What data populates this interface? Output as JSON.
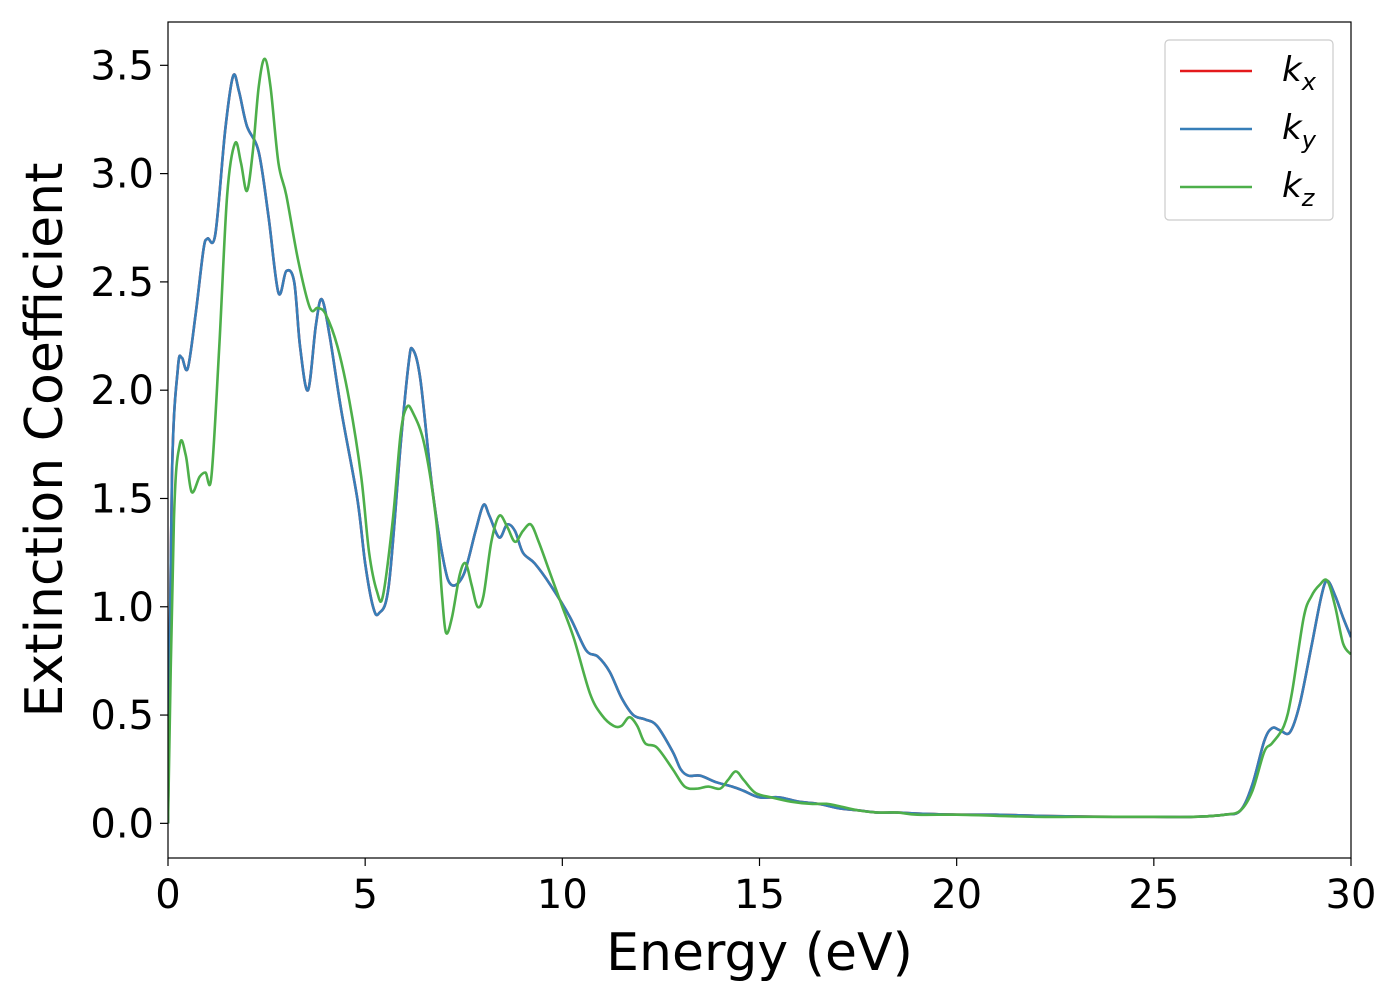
{
  "chart_data": {
    "type": "line",
    "title": "",
    "xlabel": "Energy (eV)",
    "ylabel": "Extinction Coefficient",
    "xlim": [
      0,
      30
    ],
    "ylim": [
      -0.16,
      3.7
    ],
    "xticks": [
      0,
      5,
      10,
      15,
      20,
      25,
      30
    ],
    "yticks": [
      "0.0",
      "0.5",
      "1.0",
      "1.5",
      "2.0",
      "2.5",
      "3.0",
      "3.5"
    ],
    "grid": false,
    "legend_position": "top-right",
    "legend": [
      {
        "base": "k",
        "sub": "x",
        "color": "#e41a1c"
      },
      {
        "base": "k",
        "sub": "y",
        "color": "#377eb8"
      },
      {
        "base": "k",
        "sub": "z",
        "color": "#4daf4a"
      }
    ],
    "series": [
      {
        "name": "k_x",
        "color": "#e41a1c",
        "points": [
          [
            0,
            0
          ],
          [
            0.1,
            1.6
          ],
          [
            0.25,
            2.1
          ],
          [
            0.35,
            2.15
          ],
          [
            0.5,
            2.1
          ],
          [
            0.7,
            2.35
          ],
          [
            0.9,
            2.65
          ],
          [
            1.0,
            2.7
          ],
          [
            1.2,
            2.72
          ],
          [
            1.45,
            3.2
          ],
          [
            1.65,
            3.45
          ],
          [
            1.8,
            3.38
          ],
          [
            2.0,
            3.22
          ],
          [
            2.3,
            3.1
          ],
          [
            2.55,
            2.8
          ],
          [
            2.8,
            2.45
          ],
          [
            3.0,
            2.55
          ],
          [
            3.2,
            2.5
          ],
          [
            3.35,
            2.2
          ],
          [
            3.55,
            2.0
          ],
          [
            3.75,
            2.3
          ],
          [
            3.9,
            2.42
          ],
          [
            4.1,
            2.25
          ],
          [
            4.4,
            1.9
          ],
          [
            4.8,
            1.5
          ],
          [
            5.0,
            1.2
          ],
          [
            5.2,
            1.0
          ],
          [
            5.35,
            0.97
          ],
          [
            5.6,
            1.1
          ],
          [
            5.9,
            1.75
          ],
          [
            6.1,
            2.12
          ],
          [
            6.2,
            2.19
          ],
          [
            6.4,
            2.05
          ],
          [
            6.7,
            1.55
          ],
          [
            7.0,
            1.2
          ],
          [
            7.2,
            1.1
          ],
          [
            7.5,
            1.15
          ],
          [
            7.8,
            1.35
          ],
          [
            8.0,
            1.47
          ],
          [
            8.15,
            1.42
          ],
          [
            8.4,
            1.32
          ],
          [
            8.6,
            1.38
          ],
          [
            8.8,
            1.35
          ],
          [
            9.0,
            1.25
          ],
          [
            9.3,
            1.2
          ],
          [
            9.7,
            1.1
          ],
          [
            10.2,
            0.95
          ],
          [
            10.6,
            0.8
          ],
          [
            10.9,
            0.77
          ],
          [
            11.2,
            0.7
          ],
          [
            11.5,
            0.58
          ],
          [
            11.8,
            0.5
          ],
          [
            12.1,
            0.48
          ],
          [
            12.4,
            0.45
          ],
          [
            12.8,
            0.33
          ],
          [
            13.0,
            0.25
          ],
          [
            13.2,
            0.22
          ],
          [
            13.5,
            0.22
          ],
          [
            13.9,
            0.19
          ],
          [
            14.3,
            0.17
          ],
          [
            14.6,
            0.15
          ],
          [
            15.0,
            0.12
          ],
          [
            15.5,
            0.12
          ],
          [
            16.0,
            0.1
          ],
          [
            16.5,
            0.09
          ],
          [
            17.0,
            0.07
          ],
          [
            17.5,
            0.06
          ],
          [
            18.0,
            0.05
          ],
          [
            18.5,
            0.05
          ],
          [
            19.0,
            0.045
          ],
          [
            20.0,
            0.04
          ],
          [
            21.0,
            0.04
          ],
          [
            22.0,
            0.035
          ],
          [
            23.0,
            0.032
          ],
          [
            24.0,
            0.03
          ],
          [
            25.0,
            0.03
          ],
          [
            26.0,
            0.03
          ],
          [
            26.8,
            0.04
          ],
          [
            27.2,
            0.06
          ],
          [
            27.5,
            0.18
          ],
          [
            27.8,
            0.38
          ],
          [
            28.0,
            0.44
          ],
          [
            28.2,
            0.43
          ],
          [
            28.45,
            0.42
          ],
          [
            28.7,
            0.55
          ],
          [
            29.0,
            0.82
          ],
          [
            29.25,
            1.05
          ],
          [
            29.4,
            1.12
          ],
          [
            29.6,
            1.05
          ],
          [
            29.8,
            0.95
          ],
          [
            30.0,
            0.86
          ]
        ]
      },
      {
        "name": "k_y",
        "color": "#377eb8",
        "points": [
          [
            0,
            0
          ],
          [
            0.1,
            1.6
          ],
          [
            0.25,
            2.1
          ],
          [
            0.35,
            2.15
          ],
          [
            0.5,
            2.1
          ],
          [
            0.7,
            2.35
          ],
          [
            0.9,
            2.65
          ],
          [
            1.0,
            2.7
          ],
          [
            1.2,
            2.72
          ],
          [
            1.45,
            3.2
          ],
          [
            1.65,
            3.45
          ],
          [
            1.8,
            3.38
          ],
          [
            2.0,
            3.22
          ],
          [
            2.3,
            3.1
          ],
          [
            2.55,
            2.8
          ],
          [
            2.8,
            2.45
          ],
          [
            3.0,
            2.55
          ],
          [
            3.2,
            2.5
          ],
          [
            3.35,
            2.2
          ],
          [
            3.55,
            2.0
          ],
          [
            3.75,
            2.3
          ],
          [
            3.9,
            2.42
          ],
          [
            4.1,
            2.25
          ],
          [
            4.4,
            1.9
          ],
          [
            4.8,
            1.5
          ],
          [
            5.0,
            1.2
          ],
          [
            5.2,
            1.0
          ],
          [
            5.35,
            0.97
          ],
          [
            5.6,
            1.1
          ],
          [
            5.9,
            1.75
          ],
          [
            6.1,
            2.12
          ],
          [
            6.2,
            2.19
          ],
          [
            6.4,
            2.05
          ],
          [
            6.7,
            1.55
          ],
          [
            7.0,
            1.2
          ],
          [
            7.2,
            1.1
          ],
          [
            7.5,
            1.15
          ],
          [
            7.8,
            1.35
          ],
          [
            8.0,
            1.47
          ],
          [
            8.15,
            1.42
          ],
          [
            8.4,
            1.32
          ],
          [
            8.6,
            1.38
          ],
          [
            8.8,
            1.35
          ],
          [
            9.0,
            1.25
          ],
          [
            9.3,
            1.2
          ],
          [
            9.7,
            1.1
          ],
          [
            10.2,
            0.95
          ],
          [
            10.6,
            0.8
          ],
          [
            10.9,
            0.77
          ],
          [
            11.2,
            0.7
          ],
          [
            11.5,
            0.58
          ],
          [
            11.8,
            0.5
          ],
          [
            12.1,
            0.48
          ],
          [
            12.4,
            0.45
          ],
          [
            12.8,
            0.33
          ],
          [
            13.0,
            0.25
          ],
          [
            13.2,
            0.22
          ],
          [
            13.5,
            0.22
          ],
          [
            13.9,
            0.19
          ],
          [
            14.3,
            0.17
          ],
          [
            14.6,
            0.15
          ],
          [
            15.0,
            0.12
          ],
          [
            15.5,
            0.12
          ],
          [
            16.0,
            0.1
          ],
          [
            16.5,
            0.09
          ],
          [
            17.0,
            0.07
          ],
          [
            17.5,
            0.06
          ],
          [
            18.0,
            0.05
          ],
          [
            18.5,
            0.05
          ],
          [
            19.0,
            0.045
          ],
          [
            20.0,
            0.04
          ],
          [
            21.0,
            0.04
          ],
          [
            22.0,
            0.035
          ],
          [
            23.0,
            0.032
          ],
          [
            24.0,
            0.03
          ],
          [
            25.0,
            0.03
          ],
          [
            26.0,
            0.03
          ],
          [
            26.8,
            0.04
          ],
          [
            27.2,
            0.06
          ],
          [
            27.5,
            0.18
          ],
          [
            27.8,
            0.38
          ],
          [
            28.0,
            0.44
          ],
          [
            28.2,
            0.43
          ],
          [
            28.45,
            0.42
          ],
          [
            28.7,
            0.55
          ],
          [
            29.0,
            0.82
          ],
          [
            29.25,
            1.05
          ],
          [
            29.4,
            1.12
          ],
          [
            29.6,
            1.05
          ],
          [
            29.8,
            0.95
          ],
          [
            30.0,
            0.86
          ]
        ]
      },
      {
        "name": "k_z",
        "color": "#4daf4a",
        "points": [
          [
            0,
            0
          ],
          [
            0.15,
            1.4
          ],
          [
            0.3,
            1.75
          ],
          [
            0.45,
            1.7
          ],
          [
            0.6,
            1.53
          ],
          [
            0.8,
            1.6
          ],
          [
            0.95,
            1.62
          ],
          [
            1.1,
            1.6
          ],
          [
            1.3,
            2.2
          ],
          [
            1.5,
            2.9
          ],
          [
            1.7,
            3.14
          ],
          [
            1.85,
            3.05
          ],
          [
            2.0,
            2.92
          ],
          [
            2.15,
            3.1
          ],
          [
            2.3,
            3.4
          ],
          [
            2.45,
            3.53
          ],
          [
            2.6,
            3.4
          ],
          [
            2.8,
            3.05
          ],
          [
            3.0,
            2.9
          ],
          [
            3.3,
            2.6
          ],
          [
            3.6,
            2.38
          ],
          [
            3.8,
            2.38
          ],
          [
            4.0,
            2.35
          ],
          [
            4.3,
            2.2
          ],
          [
            4.6,
            1.95
          ],
          [
            4.9,
            1.6
          ],
          [
            5.1,
            1.25
          ],
          [
            5.3,
            1.07
          ],
          [
            5.45,
            1.05
          ],
          [
            5.7,
            1.4
          ],
          [
            5.9,
            1.8
          ],
          [
            6.05,
            1.92
          ],
          [
            6.2,
            1.9
          ],
          [
            6.5,
            1.75
          ],
          [
            6.8,
            1.4
          ],
          [
            6.95,
            1.05
          ],
          [
            7.05,
            0.88
          ],
          [
            7.2,
            0.95
          ],
          [
            7.4,
            1.15
          ],
          [
            7.55,
            1.2
          ],
          [
            7.7,
            1.1
          ],
          [
            7.85,
            1.0
          ],
          [
            8.0,
            1.05
          ],
          [
            8.2,
            1.3
          ],
          [
            8.4,
            1.42
          ],
          [
            8.6,
            1.37
          ],
          [
            8.8,
            1.3
          ],
          [
            9.0,
            1.35
          ],
          [
            9.2,
            1.38
          ],
          [
            9.4,
            1.3
          ],
          [
            9.7,
            1.15
          ],
          [
            10.0,
            1.0
          ],
          [
            10.3,
            0.85
          ],
          [
            10.7,
            0.6
          ],
          [
            11.0,
            0.5
          ],
          [
            11.3,
            0.45
          ],
          [
            11.5,
            0.45
          ],
          [
            11.7,
            0.49
          ],
          [
            11.9,
            0.45
          ],
          [
            12.1,
            0.37
          ],
          [
            12.4,
            0.35
          ],
          [
            12.8,
            0.25
          ],
          [
            13.1,
            0.17
          ],
          [
            13.4,
            0.16
          ],
          [
            13.7,
            0.17
          ],
          [
            14.0,
            0.16
          ],
          [
            14.2,
            0.2
          ],
          [
            14.4,
            0.24
          ],
          [
            14.6,
            0.2
          ],
          [
            14.9,
            0.14
          ],
          [
            15.3,
            0.12
          ],
          [
            15.8,
            0.1
          ],
          [
            16.3,
            0.09
          ],
          [
            16.7,
            0.09
          ],
          [
            17.0,
            0.08
          ],
          [
            17.5,
            0.06
          ],
          [
            18.0,
            0.05
          ],
          [
            18.5,
            0.05
          ],
          [
            19.0,
            0.04
          ],
          [
            20.0,
            0.04
          ],
          [
            21.0,
            0.035
          ],
          [
            22.0,
            0.03
          ],
          [
            23.0,
            0.03
          ],
          [
            24.0,
            0.03
          ],
          [
            25.0,
            0.03
          ],
          [
            26.0,
            0.03
          ],
          [
            26.8,
            0.04
          ],
          [
            27.2,
            0.06
          ],
          [
            27.5,
            0.15
          ],
          [
            27.8,
            0.33
          ],
          [
            28.0,
            0.37
          ],
          [
            28.3,
            0.45
          ],
          [
            28.5,
            0.6
          ],
          [
            28.8,
            0.95
          ],
          [
            29.0,
            1.05
          ],
          [
            29.2,
            1.1
          ],
          [
            29.4,
            1.12
          ],
          [
            29.6,
            1.0
          ],
          [
            29.8,
            0.83
          ],
          [
            30.0,
            0.78
          ]
        ]
      }
    ]
  }
}
